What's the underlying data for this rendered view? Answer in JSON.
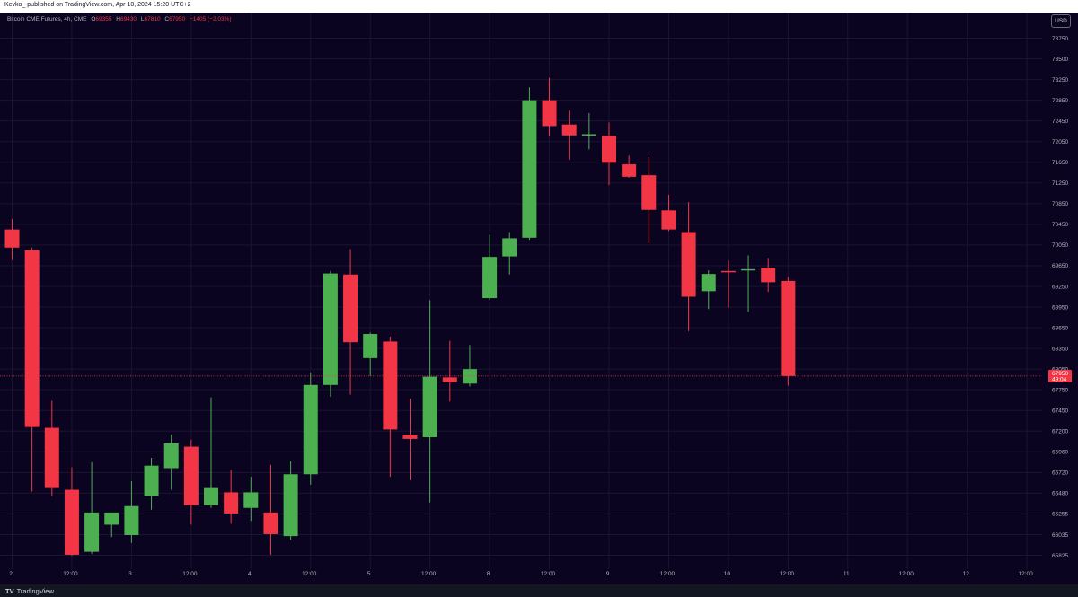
{
  "header": {
    "publish_line": "Kevko_ published on TradingView.com, Apr 10, 2024 15:20 UTC+2"
  },
  "legend": {
    "symbol": "Bitcoin CME Futures, 4h, CME",
    "o_label": "O",
    "o_value": "69355",
    "h_label": "H",
    "h_value": "69430",
    "l_label": "L",
    "l_value": "67810",
    "c_label": "C",
    "c_value": "67950",
    "change": "−1405 (−2.03%)"
  },
  "currency": "USD",
  "footer": {
    "logo_mark": "TV",
    "brand": "TradingView"
  },
  "colors": {
    "background": "#0a0420",
    "up": "#4caf50",
    "down": "#f23645",
    "axis_text": "#b2b5be",
    "price_line": "#f23645"
  },
  "chart_data": {
    "type": "candlestick",
    "y_axis": {
      "ylim": [
        65780,
        73950
      ],
      "ticks": [
        "73750",
        "73500",
        "73250",
        "72850",
        "72450",
        "72050",
        "71650",
        "71250",
        "70850",
        "70450",
        "70050",
        "69650",
        "69250",
        "68950",
        "68650",
        "68350",
        "68050",
        "67750",
        "67450",
        "67200",
        "66960",
        "66720",
        "66480",
        "66255",
        "66035",
        "65825"
      ]
    },
    "x_axis": {
      "ticks": [
        {
          "label": "2",
          "x": 0
        },
        {
          "label": "12:00",
          "x": 3
        },
        {
          "label": "3",
          "x": 6
        },
        {
          "label": "12:00",
          "x": 9
        },
        {
          "label": "4",
          "x": 12
        },
        {
          "label": "12:00",
          "x": 15
        },
        {
          "label": "5",
          "x": 18
        },
        {
          "label": "12:00",
          "x": 21
        },
        {
          "label": "8",
          "x": 24
        },
        {
          "label": "12:00",
          "x": 27
        },
        {
          "label": "9",
          "x": 30
        },
        {
          "label": "12:00",
          "x": 33
        },
        {
          "label": "10",
          "x": 36
        },
        {
          "label": "12:00",
          "x": 39
        },
        {
          "label": "11",
          "x": 42
        },
        {
          "label": "12:00",
          "x": 45
        },
        {
          "label": "12",
          "x": 48
        },
        {
          "label": "12:00",
          "x": 51
        }
      ]
    },
    "last_price": {
      "price": "67950",
      "countdown": "49:04",
      "value": 67950
    },
    "candles": [
      {
        "o": 70350,
        "h": 70550,
        "l": 69760,
        "c": 70000
      },
      {
        "o": 69950,
        "h": 70000,
        "l": 66500,
        "c": 67250
      },
      {
        "o": 67240,
        "h": 67590,
        "l": 66450,
        "c": 66540
      },
      {
        "o": 66520,
        "h": 66780,
        "l": 65820,
        "c": 65830
      },
      {
        "o": 65860,
        "h": 66840,
        "l": 65840,
        "c": 66270
      },
      {
        "o": 66140,
        "h": 66260,
        "l": 66010,
        "c": 66270
      },
      {
        "o": 66030,
        "h": 66620,
        "l": 65950,
        "c": 66340
      },
      {
        "o": 66450,
        "h": 66890,
        "l": 66300,
        "c": 66800
      },
      {
        "o": 66770,
        "h": 67160,
        "l": 66520,
        "c": 67060
      },
      {
        "o": 67020,
        "h": 67100,
        "l": 66140,
        "c": 66350
      },
      {
        "o": 66350,
        "h": 67640,
        "l": 66320,
        "c": 66540
      },
      {
        "o": 66490,
        "h": 66750,
        "l": 66150,
        "c": 66260
      },
      {
        "o": 66320,
        "h": 66670,
        "l": 66180,
        "c": 66490
      },
      {
        "o": 66270,
        "h": 66810,
        "l": 65830,
        "c": 66040
      },
      {
        "o": 66020,
        "h": 66850,
        "l": 65980,
        "c": 66700
      },
      {
        "o": 66700,
        "h": 68000,
        "l": 66580,
        "c": 67820
      },
      {
        "o": 67820,
        "h": 69550,
        "l": 67650,
        "c": 69500
      },
      {
        "o": 69480,
        "h": 69970,
        "l": 67680,
        "c": 68440
      },
      {
        "o": 68210,
        "h": 68580,
        "l": 67950,
        "c": 68560
      },
      {
        "o": 68450,
        "h": 68520,
        "l": 66670,
        "c": 67220
      },
      {
        "o": 67160,
        "h": 67620,
        "l": 66630,
        "c": 67110
      },
      {
        "o": 67130,
        "h": 69050,
        "l": 66380,
        "c": 67940
      },
      {
        "o": 67930,
        "h": 68460,
        "l": 67580,
        "c": 67860
      },
      {
        "o": 67840,
        "h": 68400,
        "l": 67800,
        "c": 68050
      },
      {
        "o": 69080,
        "h": 70250,
        "l": 69050,
        "c": 69820
      },
      {
        "o": 69830,
        "h": 70300,
        "l": 69480,
        "c": 70180
      },
      {
        "o": 70190,
        "h": 73100,
        "l": 70150,
        "c": 72850
      },
      {
        "o": 72850,
        "h": 73270,
        "l": 72150,
        "c": 72350
      },
      {
        "o": 72380,
        "h": 72650,
        "l": 71700,
        "c": 72170
      },
      {
        "o": 72180,
        "h": 72600,
        "l": 71900,
        "c": 72180
      },
      {
        "o": 72160,
        "h": 72420,
        "l": 71210,
        "c": 71640
      },
      {
        "o": 71610,
        "h": 71780,
        "l": 71350,
        "c": 71370
      },
      {
        "o": 71400,
        "h": 71750,
        "l": 70080,
        "c": 70730
      },
      {
        "o": 70720,
        "h": 71020,
        "l": 70320,
        "c": 70350
      },
      {
        "o": 70300,
        "h": 70880,
        "l": 68600,
        "c": 69100
      },
      {
        "o": 69180,
        "h": 69560,
        "l": 68920,
        "c": 69490
      },
      {
        "o": 69540,
        "h": 69750,
        "l": 68940,
        "c": 69530
      },
      {
        "o": 69560,
        "h": 69850,
        "l": 68880,
        "c": 69580
      },
      {
        "o": 69610,
        "h": 69800,
        "l": 69170,
        "c": 69330
      },
      {
        "o": 69355,
        "h": 69430,
        "l": 67810,
        "c": 67950
      }
    ]
  }
}
